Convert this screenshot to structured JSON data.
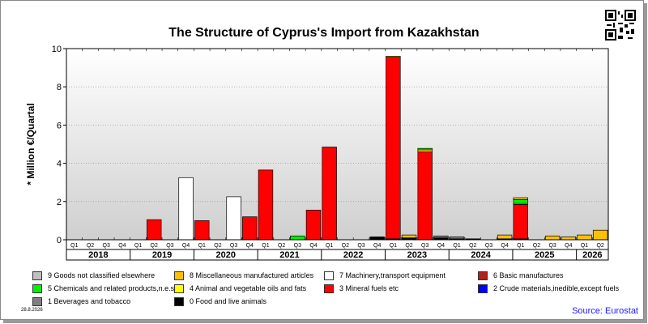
{
  "chart_data": {
    "type": "bar",
    "stacked": true,
    "title": "The Structure of Cyprus's Import from Kazakhstan",
    "ylabel": "* Million €/Quartal",
    "xlabel": "",
    "ylim": [
      0,
      10
    ],
    "yticks": [
      0,
      2,
      4,
      6,
      8,
      10
    ],
    "grid": "horizontal",
    "quarters": [
      "Q1",
      "Q2",
      "Q3",
      "Q4",
      "Q1",
      "Q2",
      "Q3",
      "Q4",
      "Q1",
      "Q2",
      "Q3",
      "Q4",
      "Q1",
      "Q2",
      "Q3",
      "Q4",
      "Q1",
      "Q2",
      "Q3",
      "Q4",
      "Q1",
      "Q2",
      "Q3",
      "Q4",
      "Q1",
      "Q2",
      "Q3",
      "Q4",
      "Q1",
      "Q2",
      "Q3",
      "Q4",
      "Q1",
      "Q2"
    ],
    "years": [
      {
        "label": "2018",
        "start": 0,
        "count": 4
      },
      {
        "label": "2019",
        "start": 4,
        "count": 4
      },
      {
        "label": "2020",
        "start": 8,
        "count": 4
      },
      {
        "label": "2021",
        "start": 12,
        "count": 4
      },
      {
        "label": "2022",
        "start": 16,
        "count": 4
      },
      {
        "label": "2023",
        "start": 20,
        "count": 4
      },
      {
        "label": "2024",
        "start": 24,
        "count": 4
      },
      {
        "label": "2025",
        "start": 28,
        "count": 4
      },
      {
        "label": "2026",
        "start": 32,
        "count": 2
      }
    ],
    "series": [
      {
        "name": "9 Goods not classified elsewhere",
        "color": "#c0c0c0",
        "values": [
          0,
          0,
          0,
          0,
          0,
          0,
          0,
          0,
          0,
          0,
          0,
          0,
          0,
          0,
          0,
          0,
          0,
          0,
          0,
          0,
          0,
          0,
          0,
          0,
          0,
          0,
          0,
          0,
          0,
          0,
          0,
          0,
          0,
          0
        ]
      },
      {
        "name": "8 Miscellaneous manufactured articles",
        "color": "#ffc000",
        "values": [
          0,
          0,
          0,
          0,
          0,
          0,
          0,
          0,
          0,
          0,
          0,
          0,
          0,
          0,
          0,
          0,
          0,
          0,
          0,
          0,
          0,
          0.15,
          0,
          0,
          0,
          0,
          0,
          0.2,
          0.1,
          0,
          0.2,
          0.15,
          0.25,
          0.5
        ]
      },
      {
        "name": "7 Machinery,transport equipment",
        "color": "#ffffff",
        "values": [
          0,
          0,
          0,
          0,
          0,
          0,
          0,
          3.25,
          0,
          0,
          2.25,
          0,
          0,
          0,
          0,
          0,
          0,
          0,
          0,
          0,
          0,
          0,
          0,
          0,
          0,
          0,
          0,
          0,
          0,
          0,
          0,
          0,
          0,
          0
        ]
      },
      {
        "name": "6 Basic manufactures",
        "color": "#b22222",
        "values": [
          0,
          0,
          0,
          0,
          0,
          0,
          0,
          0,
          0,
          0,
          0,
          0,
          0,
          0,
          0,
          0,
          0,
          0,
          0,
          0,
          0,
          0,
          0,
          0,
          0,
          0,
          0,
          0,
          0,
          0,
          0,
          0,
          0,
          0
        ]
      },
      {
        "name": "5 Chemicals and related products,n.e.s.",
        "color": "#00ee00",
        "values": [
          0,
          0,
          0,
          0,
          0,
          0,
          0,
          0,
          0,
          0,
          0,
          0,
          0,
          0,
          0.2,
          0,
          0,
          0,
          0,
          0,
          0,
          0,
          0.08,
          0,
          0,
          0,
          0,
          0,
          0.2,
          0,
          0,
          0,
          0,
          0
        ]
      },
      {
        "name": "4 Animal and vegetable oils and fats",
        "color": "#ffff00",
        "values": [
          0,
          0,
          0,
          0,
          0,
          0,
          0,
          0,
          0,
          0,
          0,
          0,
          0,
          0,
          0,
          0,
          0,
          0,
          0,
          0,
          0.05,
          0,
          0.1,
          0,
          0,
          0,
          0,
          0,
          0.05,
          0,
          0,
          0,
          0,
          0
        ]
      },
      {
        "name": "3 Mineral fuels etc",
        "color": "#ff0000",
        "values": [
          0,
          0,
          0,
          0,
          0,
          1.05,
          0,
          0,
          1.0,
          0,
          0,
          1.2,
          3.65,
          0,
          0,
          1.55,
          4.85,
          0,
          0,
          0,
          9.5,
          0,
          4.6,
          0,
          0,
          0,
          0,
          0,
          1.8,
          0,
          0,
          0,
          0,
          0
        ]
      },
      {
        "name": "2 Crude materials,inedible,except fuels",
        "color": "#0000ff",
        "values": [
          0,
          0,
          0,
          0,
          0,
          0,
          0,
          0,
          0,
          0,
          0,
          0,
          0,
          0,
          0,
          0,
          0,
          0,
          0,
          0,
          0,
          0,
          0,
          0,
          0,
          0,
          0,
          0,
          0,
          0,
          0,
          0,
          0,
          0
        ]
      },
      {
        "name": "1 Beverages and tobacco",
        "color": "#808080",
        "values": [
          0,
          0,
          0,
          0,
          0,
          0,
          0,
          0,
          0,
          0,
          0,
          0,
          0,
          0,
          0,
          0,
          0,
          0,
          0,
          0,
          0,
          0,
          0,
          0.1,
          0.1,
          0,
          0,
          0,
          0,
          0,
          0,
          0,
          0,
          0
        ]
      },
      {
        "name": "0 Food and live animals",
        "color": "#000000",
        "values": [
          0,
          0,
          0,
          0,
          0,
          0,
          0,
          0,
          0,
          0,
          0,
          0,
          0,
          0,
          0,
          0,
          0,
          0,
          0,
          0.15,
          0.05,
          0.1,
          0,
          0.1,
          0.05,
          0.05,
          0,
          0.05,
          0.05,
          0,
          0,
          0,
          0,
          0
        ]
      }
    ],
    "legend_position": "bottom"
  },
  "footer": {
    "date": "28.8.2026",
    "source": "Source: Eurostat"
  },
  "qr_icon": "qr-code-icon"
}
